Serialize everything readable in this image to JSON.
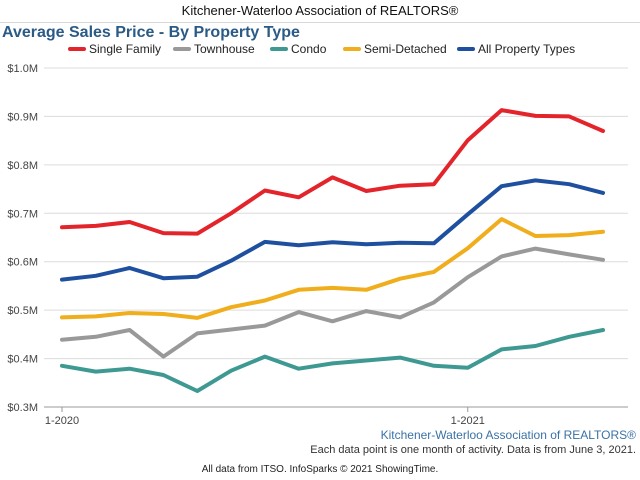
{
  "header": {
    "title": "Kitchener-Waterloo Association of REALTORS®"
  },
  "watermark": "Kitchener-Waterloo Association of REALTORS®",
  "note": "Each data point is one month of activity. Data is from June 3, 2021.",
  "footer": "All data from ITSO. InfoSparks © 2021 ShowingTime.",
  "chart_data": {
    "type": "line",
    "title": "Average Sales Price - By Property Type",
    "xlabel": "",
    "ylabel": "",
    "x": [
      "2020-01",
      "2020-02",
      "2020-03",
      "2020-04",
      "2020-05",
      "2020-06",
      "2020-07",
      "2020-08",
      "2020-09",
      "2020-10",
      "2020-11",
      "2020-12",
      "2021-01",
      "2021-02",
      "2021-03",
      "2021-04",
      "2021-05"
    ],
    "x_tick_labels": [
      {
        "x": "2020-01",
        "label": "1-2020"
      },
      {
        "x": "2021-01",
        "label": "1-2021"
      }
    ],
    "ylim": [
      0.3,
      1.0
    ],
    "y_unit": "millions of dollars",
    "y_ticks": [
      0.3,
      0.4,
      0.5,
      0.6,
      0.7,
      0.8,
      0.9,
      1.0
    ],
    "y_tick_labels": [
      "$0.3M",
      "$0.4M",
      "$0.5M",
      "$0.6M",
      "$0.7M",
      "$0.8M",
      "$0.9M",
      "$1.0M"
    ],
    "grid": true,
    "legend_position": "top",
    "series": [
      {
        "name": "Single Family",
        "color": "#e3242b",
        "values": [
          0.671,
          0.674,
          0.682,
          0.659,
          0.658,
          0.7,
          0.747,
          0.733,
          0.774,
          0.746,
          0.757,
          0.76,
          0.851,
          0.913,
          0.901,
          0.9,
          0.87
        ]
      },
      {
        "name": "Townhouse",
        "color": "#999999",
        "values": [
          0.439,
          0.445,
          0.459,
          0.404,
          0.452,
          0.46,
          0.468,
          0.496,
          0.477,
          0.498,
          0.485,
          0.516,
          0.568,
          0.611,
          0.627,
          0.615,
          0.604
        ]
      },
      {
        "name": "Condo",
        "color": "#3e9993",
        "values": [
          0.385,
          0.373,
          0.379,
          0.366,
          0.333,
          0.375,
          0.404,
          0.379,
          0.39,
          0.396,
          0.402,
          0.385,
          0.381,
          0.419,
          0.426,
          0.445,
          0.459
        ]
      },
      {
        "name": "Semi-Detached",
        "color": "#f0ad1c",
        "values": [
          0.485,
          0.487,
          0.494,
          0.492,
          0.484,
          0.506,
          0.52,
          0.542,
          0.546,
          0.542,
          0.565,
          0.579,
          0.628,
          0.688,
          0.653,
          0.655,
          0.662
        ]
      },
      {
        "name": "All Property Types",
        "color": "#1f50a0",
        "values": [
          0.563,
          0.571,
          0.587,
          0.566,
          0.569,
          0.602,
          0.641,
          0.634,
          0.64,
          0.636,
          0.639,
          0.638,
          0.698,
          0.756,
          0.768,
          0.76,
          0.742
        ]
      }
    ]
  }
}
